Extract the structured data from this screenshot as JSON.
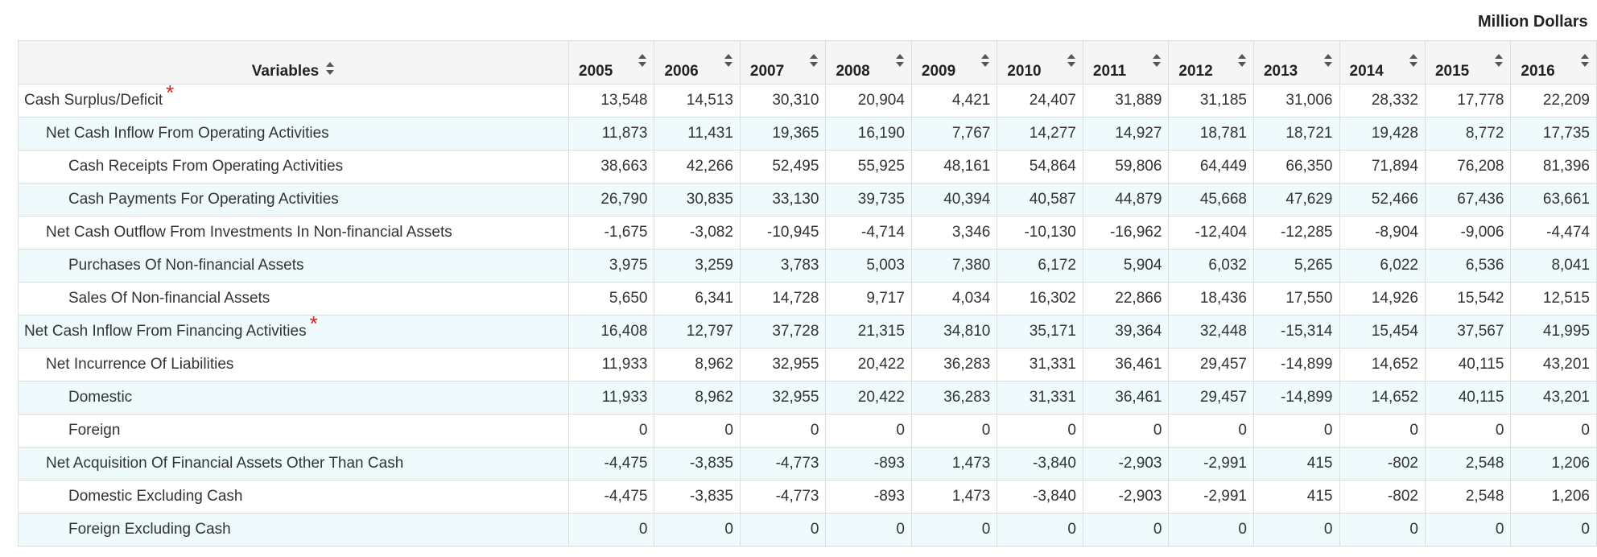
{
  "unit_label": "Million Dollars",
  "header": {
    "variables_label": "Variables",
    "years": [
      "2005",
      "2006",
      "2007",
      "2008",
      "2009",
      "2010",
      "2011",
      "2012",
      "2013",
      "2014",
      "2015",
      "2016"
    ]
  },
  "icons": {
    "sort": "sort-icon",
    "asterisk_color": "#e02020"
  },
  "rows": [
    {
      "label": "Cash Surplus/Deficit",
      "level": 0,
      "asterisk": "*",
      "values": [
        "13,548",
        "14,513",
        "30,310",
        "20,904",
        "4,421",
        "24,407",
        "31,889",
        "31,185",
        "31,006",
        "28,332",
        "17,778",
        "22,209"
      ]
    },
    {
      "label": "Net Cash Inflow From Operating Activities",
      "level": 1,
      "values": [
        "11,873",
        "11,431",
        "19,365",
        "16,190",
        "7,767",
        "14,277",
        "14,927",
        "18,781",
        "18,721",
        "19,428",
        "8,772",
        "17,735"
      ]
    },
    {
      "label": "Cash Receipts From Operating Activities",
      "level": 2,
      "values": [
        "38,663",
        "42,266",
        "52,495",
        "55,925",
        "48,161",
        "54,864",
        "59,806",
        "64,449",
        "66,350",
        "71,894",
        "76,208",
        "81,396"
      ]
    },
    {
      "label": "Cash Payments For Operating Activities",
      "level": 2,
      "values": [
        "26,790",
        "30,835",
        "33,130",
        "39,735",
        "40,394",
        "40,587",
        "44,879",
        "45,668",
        "47,629",
        "52,466",
        "67,436",
        "63,661"
      ]
    },
    {
      "label": "Net Cash Outflow From Investments In Non-financial Assets",
      "level": 1,
      "values": [
        "-1,675",
        "-3,082",
        "-10,945",
        "-4,714",
        "3,346",
        "-10,130",
        "-16,962",
        "-12,404",
        "-12,285",
        "-8,904",
        "-9,006",
        "-4,474"
      ]
    },
    {
      "label": "Purchases Of Non-financial Assets",
      "level": 2,
      "values": [
        "3,975",
        "3,259",
        "3,783",
        "5,003",
        "7,380",
        "6,172",
        "5,904",
        "6,032",
        "5,265",
        "6,022",
        "6,536",
        "8,041"
      ]
    },
    {
      "label": "Sales Of Non-financial Assets",
      "level": 2,
      "values": [
        "5,650",
        "6,341",
        "14,728",
        "9,717",
        "4,034",
        "16,302",
        "22,866",
        "18,436",
        "17,550",
        "14,926",
        "15,542",
        "12,515"
      ]
    },
    {
      "label": "Net Cash Inflow From Financing Activities",
      "level": 0,
      "asterisk": "*",
      "values": [
        "16,408",
        "12,797",
        "37,728",
        "21,315",
        "34,810",
        "35,171",
        "39,364",
        "32,448",
        "-15,314",
        "15,454",
        "37,567",
        "41,995"
      ]
    },
    {
      "label": "Net Incurrence Of Liabilities",
      "level": 1,
      "values": [
        "11,933",
        "8,962",
        "32,955",
        "20,422",
        "36,283",
        "31,331",
        "36,461",
        "29,457",
        "-14,899",
        "14,652",
        "40,115",
        "43,201"
      ]
    },
    {
      "label": "Domestic",
      "level": 2,
      "values": [
        "11,933",
        "8,962",
        "32,955",
        "20,422",
        "36,283",
        "31,331",
        "36,461",
        "29,457",
        "-14,899",
        "14,652",
        "40,115",
        "43,201"
      ]
    },
    {
      "label": "Foreign",
      "level": 2,
      "values": [
        "0",
        "0",
        "0",
        "0",
        "0",
        "0",
        "0",
        "0",
        "0",
        "0",
        "0",
        "0"
      ]
    },
    {
      "label": "Net Acquisition Of Financial Assets Other Than Cash",
      "level": 1,
      "values": [
        "-4,475",
        "-3,835",
        "-4,773",
        "-893",
        "1,473",
        "-3,840",
        "-2,903",
        "-2,991",
        "415",
        "-802",
        "2,548",
        "1,206"
      ]
    },
    {
      "label": "Domestic Excluding Cash",
      "level": 2,
      "values": [
        "-4,475",
        "-3,835",
        "-4,773",
        "-893",
        "1,473",
        "-3,840",
        "-2,903",
        "-2,991",
        "415",
        "-802",
        "2,548",
        "1,206"
      ]
    },
    {
      "label": "Foreign Excluding Cash",
      "level": 2,
      "values": [
        "0",
        "0",
        "0",
        "0",
        "0",
        "0",
        "0",
        "0",
        "0",
        "0",
        "0",
        "0"
      ]
    }
  ]
}
